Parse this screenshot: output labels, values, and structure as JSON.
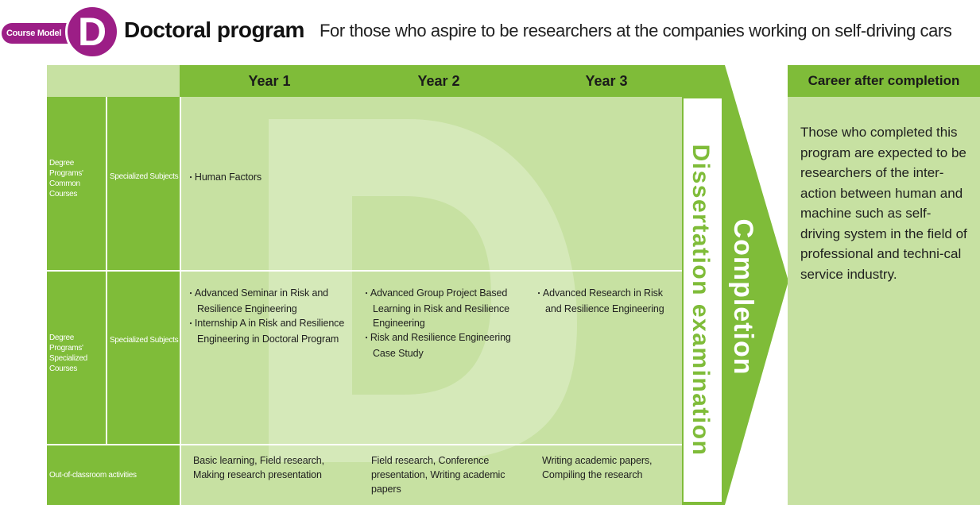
{
  "header": {
    "course_model_label": "Course Model",
    "course_letter": "D",
    "program_title": "Doctoral program",
    "program_subtitle": "For those who aspire to be researchers at the companies working on self-driving cars"
  },
  "years": [
    "Year 1",
    "Year 2",
    "Year 3"
  ],
  "rows": [
    {
      "group_label": "Degree Programs' Common Courses",
      "subject_label": "Specialized Subjects",
      "cells": [
        [
          "Human Factors"
        ],
        [],
        []
      ]
    },
    {
      "group_label": "Degree Programs' Specialized Courses",
      "subject_label": "Specialized Subjects",
      "cells": [
        [
          "Advanced Seminar in Risk and Resilience Engineering",
          "Internship A in Risk and Resilience Engineering in Doctoral Program"
        ],
        [
          "Advanced Group Project Based Learning in Risk and Resilience Engineering",
          "Risk and Resilience Engineering Case Study"
        ],
        [
          "Advanced Research in Risk and Resilience Engineering"
        ]
      ]
    },
    {
      "group_label": "Out-of-classroom activities",
      "cells": [
        "Basic learning, Field research, Making research presentation",
        "Field research, Conference presentation, Writing academic papers",
        "Writing academic papers, Compiling the research"
      ]
    }
  ],
  "dissertation_label": "Dissertation examination",
  "completion_label": "Completion",
  "career": {
    "heading": "Career after completion",
    "text": "Those who completed this program are expected to be researchers of the inter-action between human and machine such as self-driving system in the field of professional and techni-cal service industry."
  },
  "colors": {
    "accent_purple": "#9c1e86",
    "green": "#7fbc39",
    "light_green": "#c7e1a2"
  }
}
